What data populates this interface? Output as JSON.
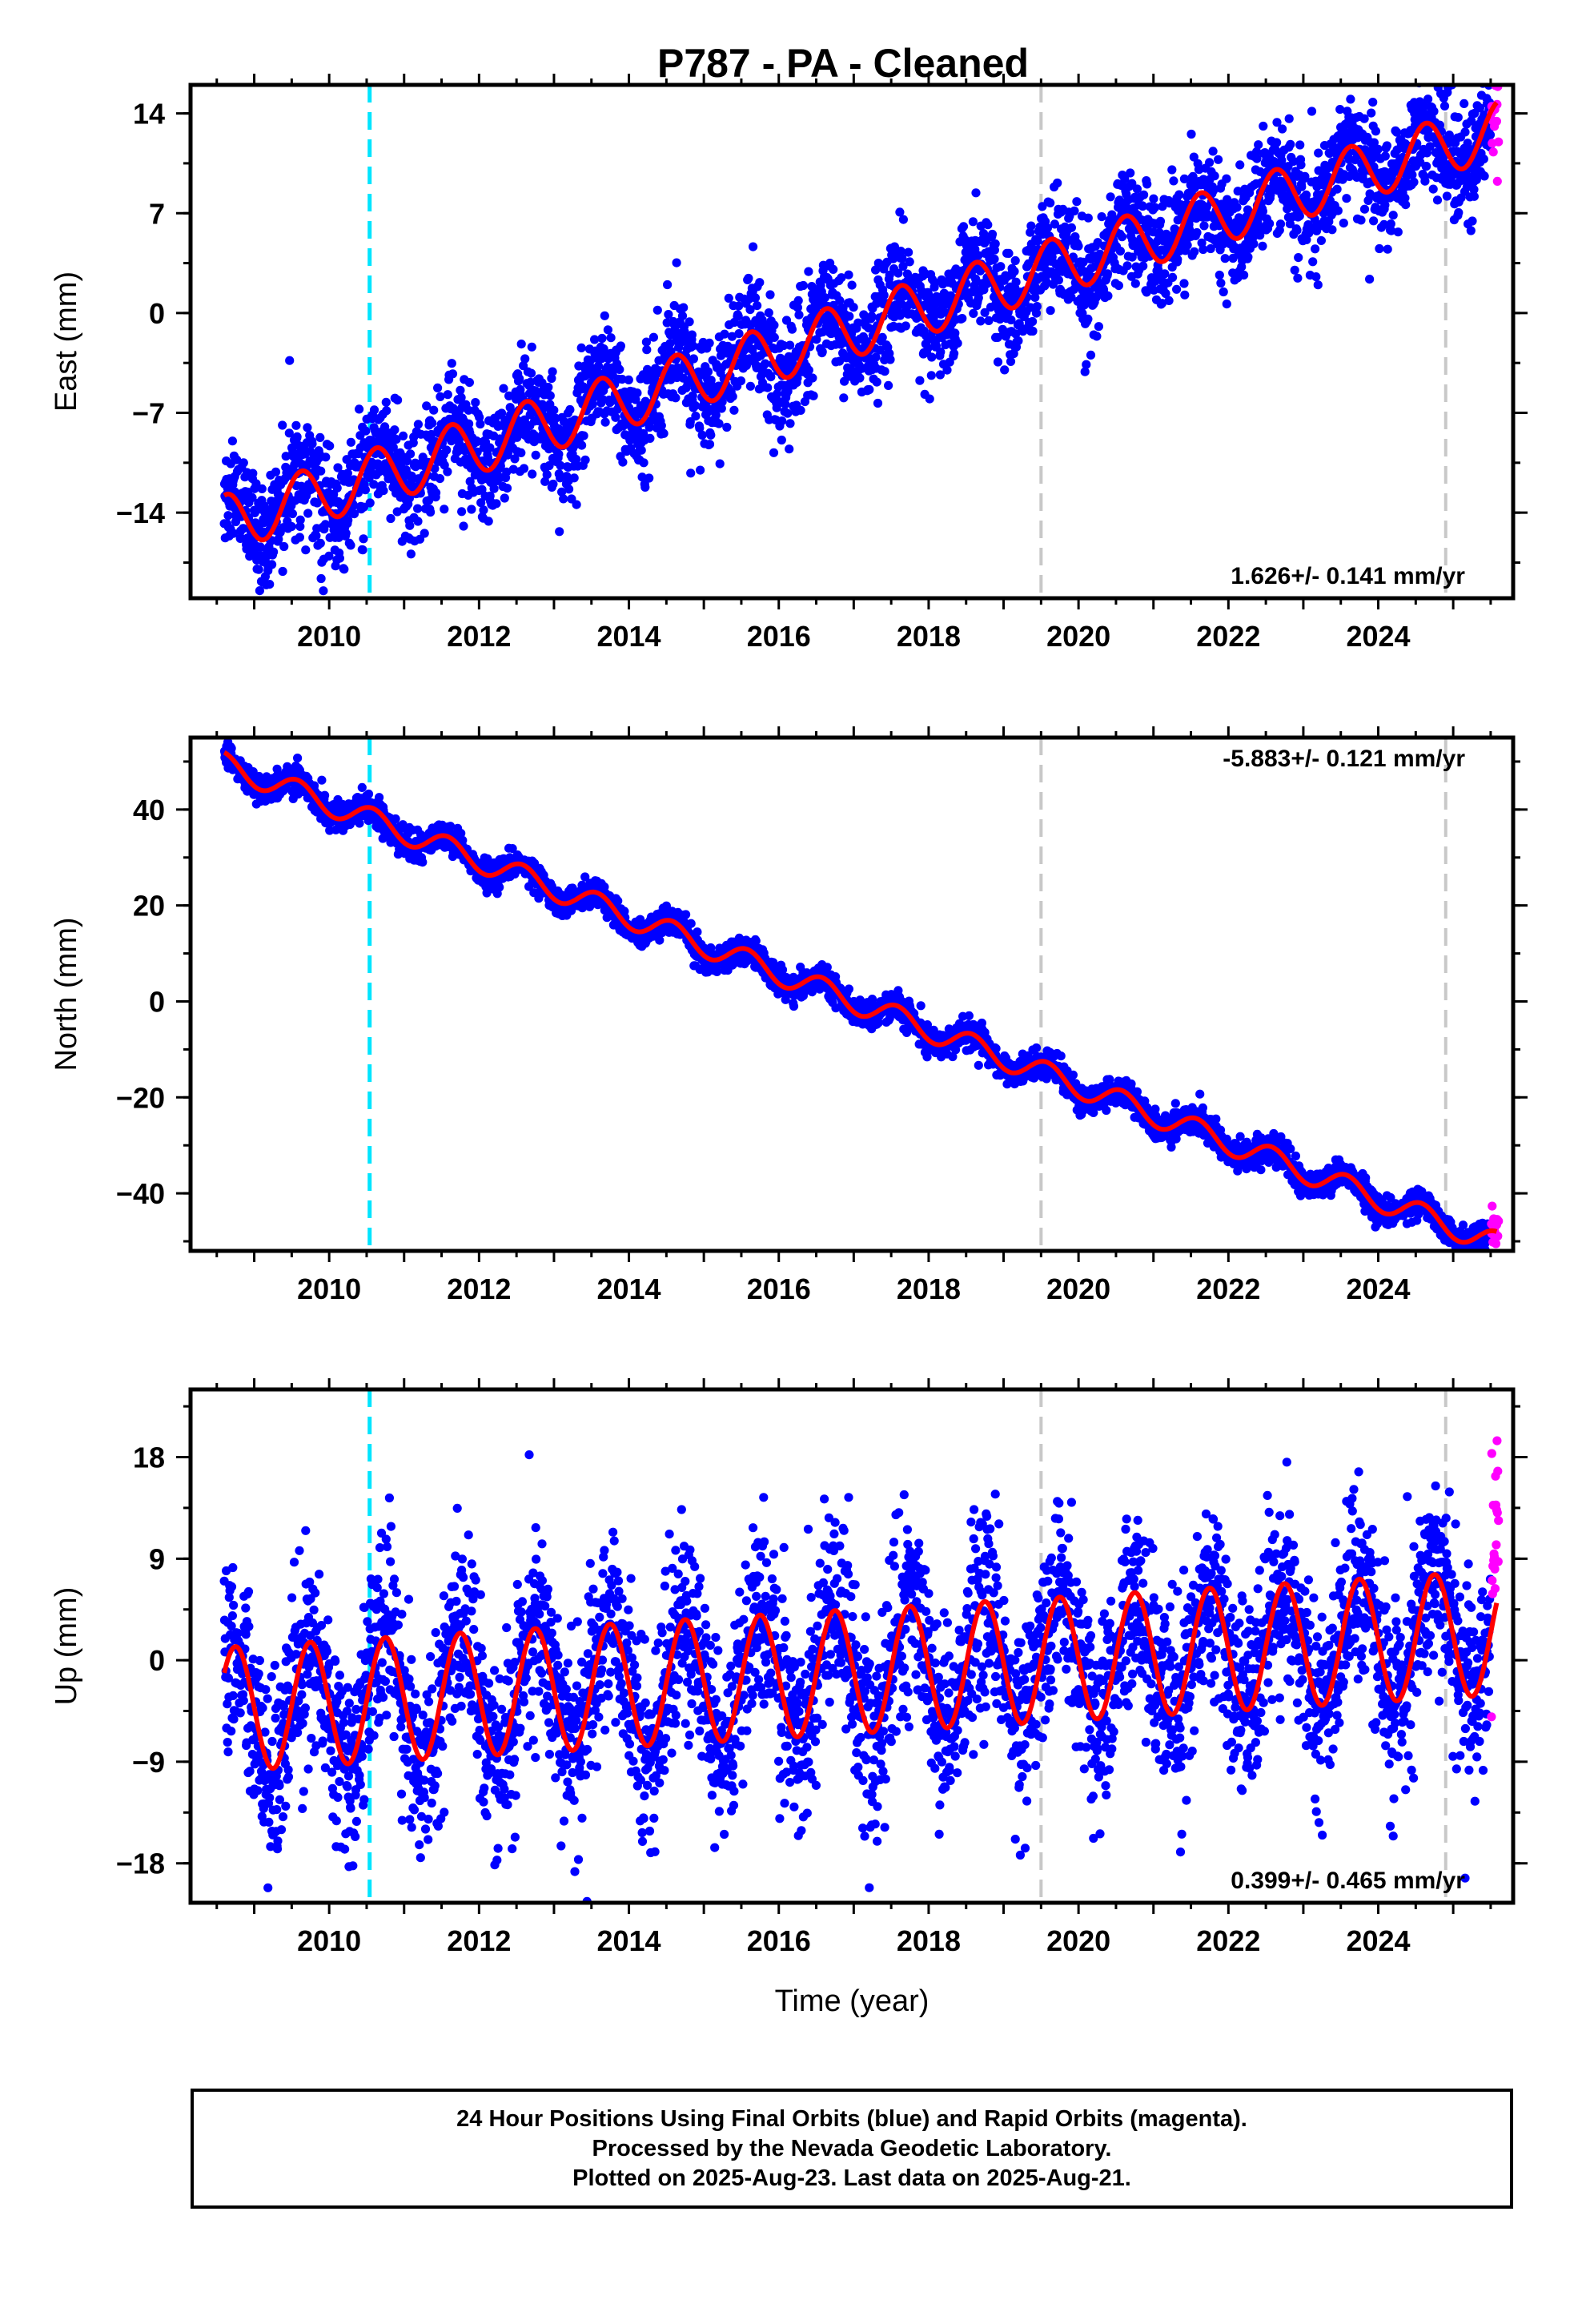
{
  "title": "P787  - PA - Cleaned",
  "colors": {
    "final_orbits": "#0000ff",
    "rapid_orbits": "#ff00ff",
    "model": "#ff0000",
    "equipment_change": "#00e5ff",
    "other_event": "#c8c8c8"
  },
  "events": {
    "equipment_change": [
      2010.54
    ],
    "other": [
      2019.5,
      2024.9
    ]
  },
  "chart_data": [
    {
      "type": "scatter",
      "name": "east",
      "ylabel": "East (mm)",
      "xlabel": "",
      "xlim": [
        2008.15,
        2025.8
      ],
      "ylim": [
        -20,
        16
      ],
      "x_ticks": [
        2010,
        2012,
        2014,
        2016,
        2018,
        2020,
        2022,
        2024
      ],
      "y_ticks": [
        14,
        7,
        0,
        -7,
        -14
      ],
      "y_tick_labels": [
        "14",
        "7",
        "0",
        "−7",
        "−14"
      ],
      "rate_text": "1.626+/- 0.141 mm/yr",
      "rate_position": "bottom-right",
      "model": {
        "rate": 1.626,
        "ref_year": 2017.0,
        "offset": -1.1,
        "amplitude": 2.0,
        "phase_year": 2008.38,
        "period": 1.0
      },
      "data_range": [
        2008.6,
        2025.58
      ],
      "rapid_range": [
        2025.5,
        2025.6
      ],
      "scatter": 1.9
    },
    {
      "type": "scatter",
      "name": "north",
      "ylabel": "North (mm)",
      "xlabel": "",
      "xlim": [
        2008.15,
        2025.8
      ],
      "ylim": [
        -52,
        55
      ],
      "x_ticks": [
        2010,
        2012,
        2014,
        2016,
        2018,
        2020,
        2022,
        2024
      ],
      "y_ticks": [
        40,
        20,
        0,
        -20,
        -40
      ],
      "y_tick_labels": [
        "40",
        "20",
        "0",
        "−20",
        "−40"
      ],
      "rate_text": "-5.883+/- 0.121 mm/yr",
      "rate_position": "top-right",
      "model": {
        "rate": -5.883,
        "ref_year": 2017.0,
        "offset": 0.0,
        "amplitude": 2.5,
        "phase_year": 2008.33,
        "period": 1.0
      },
      "data_range": [
        2008.6,
        2025.58
      ],
      "rapid_range": [
        2025.5,
        2025.6
      ],
      "scatter": 1.4
    },
    {
      "type": "scatter",
      "name": "up",
      "ylabel": "Up (mm)",
      "xlabel": "Time (year)",
      "xlim": [
        2008.15,
        2025.8
      ],
      "ylim": [
        -21.5,
        24
      ],
      "x_ticks": [
        2010,
        2012,
        2014,
        2016,
        2018,
        2020,
        2022,
        2024
      ],
      "y_ticks": [
        18,
        9,
        0,
        -9,
        -18
      ],
      "y_tick_labels": [
        "18",
        "9",
        "0",
        "−9",
        "−18"
      ],
      "rate_text": "0.399+/- 0.465 mm/yr",
      "rate_position": "bottom-right",
      "model": {
        "rate": 0.399,
        "ref_year": 2017.0,
        "offset": -1.0,
        "amplitude": 5.5,
        "phase_year": 2008.5,
        "period": 1.0
      },
      "data_range": [
        2008.6,
        2025.58
      ],
      "rapid_range": [
        2025.5,
        2025.6
      ],
      "scatter": 4.2
    }
  ],
  "footer": {
    "line1": "24 Hour Positions Using Final Orbits (blue) and Rapid Orbits (magenta).",
    "line2": "Processed by the Nevada Geodetic Laboratory.",
    "line3": "Plotted on 2025-Aug-23. Last data on 2025-Aug-21."
  }
}
